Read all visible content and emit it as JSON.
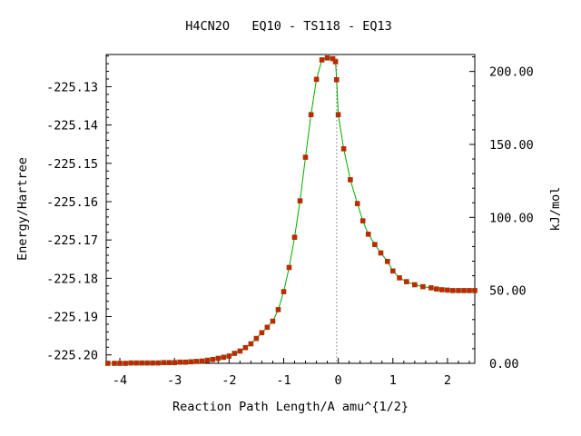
{
  "chart_data": {
    "type": "line",
    "title": "H4CN2O   EQ10 - TS118 - EQ13",
    "xlabel": "Reaction Path Length/A amu^{1/2}",
    "ylabel": "Energy/Hartree",
    "y2label": "kJ/mol",
    "xlim": [
      -4.25,
      2.5
    ],
    "ylim": [
      -225.2022,
      -225.1216
    ],
    "y2lim": [
      0.0,
      211.6
    ],
    "x_ticks": [
      -4,
      -3,
      -2,
      -1,
      0,
      1,
      2
    ],
    "x_tick_labels": [
      "-4",
      "-3",
      "-2",
      "-1",
      "0",
      "1",
      "2"
    ],
    "y_ticks": [
      -225.2,
      -225.19,
      -225.18,
      -225.17,
      -225.16,
      -225.15,
      -225.14,
      -225.13
    ],
    "y_tick_labels": [
      "-225.20",
      "-225.19",
      "-225.18",
      "-225.17",
      "-225.16",
      "-225.15",
      "-225.14",
      "-225.13"
    ],
    "y2_ticks": [
      0,
      50,
      100,
      150,
      200
    ],
    "y2_tick_labels": [
      "0.00",
      "50.00",
      "100.00",
      "150.00",
      "200.00"
    ],
    "ts_x": -0.03,
    "colors": {
      "line": "#00aa00",
      "marker": "#cc2200",
      "marker_edge": "#884400",
      "ts_line": "#999999"
    },
    "series": [
      {
        "x": [
          -4.22,
          -4.1,
          -4.0,
          -3.9,
          -3.8,
          -3.7,
          -3.6,
          -3.5,
          -3.4,
          -3.3,
          -3.2,
          -3.1,
          -3.0,
          -2.9,
          -2.8,
          -2.7,
          -2.6,
          -2.5,
          -2.4,
          -2.3,
          -2.2,
          -2.1,
          -2.0,
          -1.9,
          -1.8,
          -1.7,
          -1.6,
          -1.5,
          -1.4,
          -1.3,
          -1.2,
          -1.1,
          -1.0,
          -0.9,
          -0.8,
          -0.7,
          -0.6,
          -0.5,
          -0.4,
          -0.3,
          -0.2,
          -0.1,
          -0.05,
          -0.03,
          0.0,
          0.1,
          0.22,
          0.35,
          0.45,
          0.55,
          0.67,
          0.78,
          0.9,
          1.0,
          1.12,
          1.25,
          1.4,
          1.55,
          1.7,
          1.8,
          1.9,
          2.0,
          2.1,
          2.2,
          2.3,
          2.4,
          2.5
        ],
        "y": [
          -225.2022,
          -225.2022,
          -225.2022,
          -225.2022,
          -225.2021,
          -225.2021,
          -225.2021,
          -225.2021,
          -225.2021,
          -225.2021,
          -225.202,
          -225.202,
          -225.202,
          -225.2019,
          -225.2019,
          -225.2018,
          -225.2017,
          -225.2016,
          -225.2014,
          -225.2012,
          -225.2009,
          -225.2006,
          -225.2003,
          -225.1996,
          -225.199,
          -225.1981,
          -225.1971,
          -225.1957,
          -225.1942,
          -225.1928,
          -225.1912,
          -225.1882,
          -225.1835,
          -225.1772,
          -225.1693,
          -225.1598,
          -225.1484,
          -225.1373,
          -225.1281,
          -225.123,
          -225.1225,
          -225.1227,
          -225.1235,
          -225.1282,
          -225.1373,
          -225.1462,
          -225.1543,
          -225.1605,
          -225.165,
          -225.1685,
          -225.1712,
          -225.1734,
          -225.1756,
          -225.1781,
          -225.1799,
          -225.1809,
          -225.1817,
          -225.1822,
          -225.1825,
          -225.1828,
          -225.183,
          -225.1831,
          -225.1832,
          -225.1832,
          -225.1832,
          -225.1832,
          -225.1832
        ]
      }
    ]
  }
}
